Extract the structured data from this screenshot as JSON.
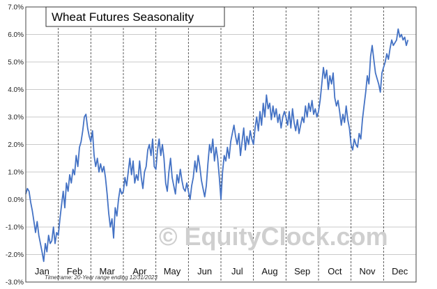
{
  "chart_data": {
    "type": "line",
    "title": "Wheat Futures Seasonality",
    "footnote": "Timeframe: 20-Year range ending 12/31/2023",
    "watermark": "© EquityClock.com",
    "xlabel": "",
    "ylabel": "",
    "ylim": [
      -3.0,
      7.0
    ],
    "yticks": [
      "-3.0%",
      "-2.0%",
      "-1.0%",
      "0.0%",
      "1.0%",
      "2.0%",
      "3.0%",
      "4.0%",
      "5.0%",
      "6.0%",
      "7.0%"
    ],
    "months": [
      "Jan",
      "Feb",
      "Mar",
      "Apr",
      "May",
      "Jun",
      "Jul",
      "Aug",
      "Sep",
      "Oct",
      "Nov",
      "Dec"
    ],
    "grid": true,
    "line_color": "#4472c4",
    "series": [
      {
        "values": [
          [
            0.0,
            0.2
          ],
          [
            0.05,
            0.4
          ],
          [
            0.1,
            0.3
          ],
          [
            0.15,
            -0.1
          ],
          [
            0.2,
            -0.4
          ],
          [
            0.25,
            -0.8
          ],
          [
            0.3,
            -1.2
          ],
          [
            0.35,
            -0.8
          ],
          [
            0.4,
            -1.3
          ],
          [
            0.45,
            -1.6
          ],
          [
            0.5,
            -1.9
          ],
          [
            0.55,
            -2.25
          ],
          [
            0.6,
            -1.6
          ],
          [
            0.65,
            -1.9
          ],
          [
            0.7,
            -1.3
          ],
          [
            0.75,
            -1.6
          ],
          [
            0.8,
            -1.5
          ],
          [
            0.85,
            -1.0
          ],
          [
            0.9,
            -1.6
          ],
          [
            0.95,
            -1.2
          ],
          [
            1.0,
            -1.3
          ],
          [
            1.05,
            -0.7
          ],
          [
            1.1,
            -0.2
          ],
          [
            1.15,
            0.3
          ],
          [
            1.2,
            -0.3
          ],
          [
            1.25,
            0.6
          ],
          [
            1.3,
            0.3
          ],
          [
            1.35,
            0.9
          ],
          [
            1.4,
            0.6
          ],
          [
            1.45,
            1.1
          ],
          [
            1.5,
            0.9
          ],
          [
            1.55,
            1.6
          ],
          [
            1.6,
            1.2
          ],
          [
            1.65,
            1.9
          ],
          [
            1.7,
            2.1
          ],
          [
            1.75,
            2.5
          ],
          [
            1.8,
            3.0
          ],
          [
            1.85,
            3.1
          ],
          [
            1.9,
            2.6
          ],
          [
            1.95,
            2.3
          ],
          [
            2.0,
            2.1
          ],
          [
            2.05,
            2.5
          ],
          [
            2.1,
            1.6
          ],
          [
            2.15,
            1.2
          ],
          [
            2.2,
            1.5
          ],
          [
            2.25,
            1.0
          ],
          [
            2.3,
            1.3
          ],
          [
            2.35,
            1.0
          ],
          [
            2.4,
            1.2
          ],
          [
            2.45,
            0.8
          ],
          [
            2.5,
            0.2
          ],
          [
            2.55,
            -0.5
          ],
          [
            2.6,
            -1.0
          ],
          [
            2.65,
            -0.7
          ],
          [
            2.7,
            -1.4
          ],
          [
            2.75,
            -0.3
          ],
          [
            2.8,
            -0.6
          ],
          [
            2.85,
            0.0
          ],
          [
            2.9,
            0.4
          ],
          [
            2.95,
            0.2
          ],
          [
            3.0,
            0.3
          ],
          [
            3.05,
            0.8
          ],
          [
            3.1,
            0.5
          ],
          [
            3.15,
            1.0
          ],
          [
            3.2,
            1.5
          ],
          [
            3.25,
            0.9
          ],
          [
            3.3,
            1.4
          ],
          [
            3.35,
            0.6
          ],
          [
            3.4,
            0.9
          ],
          [
            3.45,
            0.7
          ],
          [
            3.5,
            1.4
          ],
          [
            3.55,
            0.8
          ],
          [
            3.6,
            0.4
          ],
          [
            3.65,
            1.0
          ],
          [
            3.7,
            1.2
          ],
          [
            3.75,
            1.8
          ],
          [
            3.8,
            2.0
          ],
          [
            3.85,
            1.6
          ],
          [
            3.9,
            2.2
          ],
          [
            3.95,
            1.2
          ],
          [
            4.0,
            1.1
          ],
          [
            4.05,
            1.8
          ],
          [
            4.1,
            2.2
          ],
          [
            4.15,
            1.6
          ],
          [
            4.2,
            2.0
          ],
          [
            4.25,
            1.5
          ],
          [
            4.3,
            0.6
          ],
          [
            4.35,
            0.3
          ],
          [
            4.4,
            1.0
          ],
          [
            4.45,
            1.5
          ],
          [
            4.5,
            0.8
          ],
          [
            4.55,
            0.5
          ],
          [
            4.6,
            0.2
          ],
          [
            4.65,
            0.9
          ],
          [
            4.7,
            0.6
          ],
          [
            4.75,
            1.1
          ],
          [
            4.8,
            0.7
          ],
          [
            4.85,
            0.4
          ],
          [
            4.9,
            0.3
          ],
          [
            4.95,
            0.6
          ],
          [
            5.0,
            0.3
          ],
          [
            5.05,
            0.0
          ],
          [
            5.1,
            0.5
          ],
          [
            5.15,
            0.8
          ],
          [
            5.2,
            1.4
          ],
          [
            5.25,
            1.0
          ],
          [
            5.3,
            1.6
          ],
          [
            5.35,
            1.2
          ],
          [
            5.4,
            0.7
          ],
          [
            5.45,
            0.4
          ],
          [
            5.5,
            0.1
          ],
          [
            5.55,
            0.5
          ],
          [
            5.6,
            1.3
          ],
          [
            5.65,
            2.0
          ],
          [
            5.7,
            1.7
          ],
          [
            5.75,
            2.2
          ],
          [
            5.8,
            1.4
          ],
          [
            5.85,
            1.9
          ],
          [
            5.9,
            1.5
          ],
          [
            5.95,
            0.8
          ],
          [
            6.0,
            0.0
          ],
          [
            6.05,
            1.0
          ],
          [
            6.1,
            1.6
          ],
          [
            6.15,
            1.4
          ],
          [
            6.2,
            1.9
          ],
          [
            6.25,
            1.5
          ],
          [
            6.3,
            2.1
          ],
          [
            6.35,
            2.4
          ],
          [
            6.4,
            2.7
          ],
          [
            6.45,
            2.3
          ],
          [
            6.5,
            2.0
          ],
          [
            6.55,
            2.4
          ],
          [
            6.6,
            1.6
          ],
          [
            6.65,
            2.1
          ],
          [
            6.7,
            2.6
          ],
          [
            6.75,
            1.8
          ],
          [
            6.8,
            2.3
          ],
          [
            6.85,
            2.0
          ],
          [
            6.9,
            2.5
          ],
          [
            6.95,
            2.2
          ],
          [
            7.0,
            2.0
          ],
          [
            7.05,
            2.6
          ],
          [
            7.1,
            3.0
          ],
          [
            7.15,
            2.5
          ],
          [
            7.2,
            3.2
          ],
          [
            7.25,
            2.7
          ],
          [
            7.3,
            3.5
          ],
          [
            7.35,
            3.0
          ],
          [
            7.4,
            3.8
          ],
          [
            7.45,
            3.3
          ],
          [
            7.5,
            3.5
          ],
          [
            7.55,
            2.9
          ],
          [
            7.6,
            3.4
          ],
          [
            7.65,
            3.0
          ],
          [
            7.7,
            3.3
          ],
          [
            7.75,
            2.8
          ],
          [
            7.8,
            3.1
          ],
          [
            7.85,
            2.6
          ],
          [
            7.9,
            3.0
          ],
          [
            7.95,
            3.2
          ],
          [
            8.0,
            3.0
          ],
          [
            8.05,
            2.7
          ],
          [
            8.1,
            3.2
          ],
          [
            8.15,
            2.6
          ],
          [
            8.2,
            3.3
          ],
          [
            8.25,
            2.8
          ],
          [
            8.3,
            2.5
          ],
          [
            8.35,
            2.9
          ],
          [
            8.4,
            2.4
          ],
          [
            8.45,
            2.7
          ],
          [
            8.5,
            3.0
          ],
          [
            8.55,
            2.8
          ],
          [
            8.6,
            3.4
          ],
          [
            8.65,
            3.0
          ],
          [
            8.7,
            3.5
          ],
          [
            8.75,
            3.2
          ],
          [
            8.8,
            3.6
          ],
          [
            8.85,
            3.1
          ],
          [
            8.9,
            3.3
          ],
          [
            8.95,
            3.0
          ],
          [
            9.0,
            3.2
          ],
          [
            9.05,
            3.6
          ],
          [
            9.1,
            4.2
          ],
          [
            9.15,
            4.8
          ],
          [
            9.2,
            4.4
          ],
          [
            9.25,
            4.7
          ],
          [
            9.3,
            4.0
          ],
          [
            9.35,
            4.5
          ],
          [
            9.4,
            4.2
          ],
          [
            9.45,
            4.6
          ],
          [
            9.5,
            3.7
          ],
          [
            9.55,
            3.4
          ],
          [
            9.6,
            3.6
          ],
          [
            9.65,
            3.2
          ],
          [
            9.7,
            2.7
          ],
          [
            9.75,
            3.1
          ],
          [
            9.8,
            2.8
          ],
          [
            9.85,
            3.4
          ],
          [
            9.9,
            2.9
          ],
          [
            9.95,
            2.6
          ],
          [
            10.0,
            2.0
          ],
          [
            10.05,
            1.8
          ],
          [
            10.1,
            2.2
          ],
          [
            10.15,
            2.0
          ],
          [
            10.2,
            1.9
          ],
          [
            10.25,
            2.4
          ],
          [
            10.3,
            2.2
          ],
          [
            10.35,
            2.9
          ],
          [
            10.4,
            3.4
          ],
          [
            10.45,
            3.9
          ],
          [
            10.5,
            4.5
          ],
          [
            10.55,
            4.2
          ],
          [
            10.6,
            5.2
          ],
          [
            10.65,
            5.6
          ],
          [
            10.7,
            5.1
          ],
          [
            10.75,
            4.6
          ],
          [
            10.8,
            4.4
          ],
          [
            10.85,
            4.2
          ],
          [
            10.9,
            3.9
          ],
          [
            10.95,
            4.6
          ],
          [
            11.0,
            4.8
          ],
          [
            11.05,
            5.0
          ],
          [
            11.1,
            5.3
          ],
          [
            11.15,
            5.1
          ],
          [
            11.2,
            5.5
          ],
          [
            11.25,
            5.8
          ],
          [
            11.3,
            5.6
          ],
          [
            11.35,
            5.7
          ],
          [
            11.4,
            5.8
          ],
          [
            11.45,
            6.2
          ],
          [
            11.5,
            5.9
          ],
          [
            11.55,
            6.0
          ],
          [
            11.6,
            5.8
          ],
          [
            11.65,
            5.9
          ],
          [
            11.7,
            5.6
          ],
          [
            11.75,
            5.8
          ]
        ]
      }
    ]
  }
}
